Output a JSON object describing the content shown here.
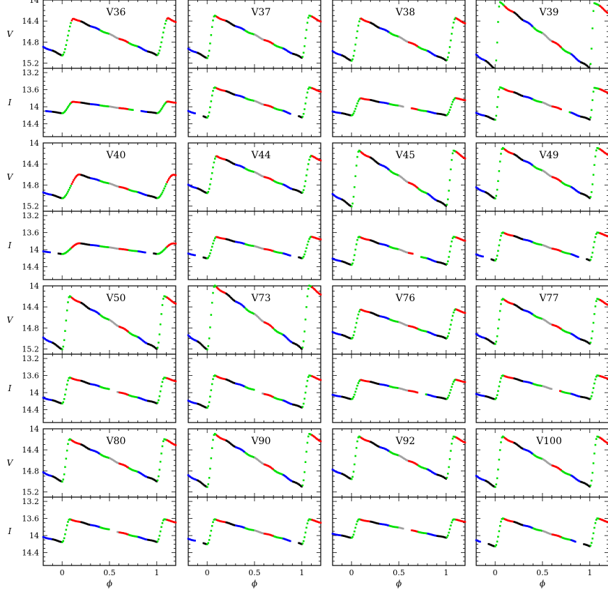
{
  "chart_data": {
    "type": "scatter",
    "description_title": "",
    "x_label": "ϕ",
    "x_range": [
      -0.2,
      1.2
    ],
    "x_ticks": [
      "0",
      "0.5",
      "1"
    ],
    "x_tick_values": [
      0,
      0.5,
      1
    ],
    "v_label": "V",
    "i_label": "I",
    "v_range": [
      14.0,
      15.3
    ],
    "v_ticks": [
      "14",
      "14.4",
      "14.8",
      "15.2"
    ],
    "v_tick_values": [
      14.0,
      14.4,
      14.8,
      15.2
    ],
    "i_range": [
      13.1,
      14.7
    ],
    "i_ticks": [
      "13.2",
      "13.6",
      "14",
      "14.4"
    ],
    "i_tick_values": [
      13.2,
      13.6,
      14.0,
      14.4
    ],
    "colors": {
      "green": "#00e000",
      "red": "#ff0000",
      "blue": "#0000ff",
      "black": "#000000",
      "gray": "#a0a0a0"
    },
    "stars": [
      {
        "name": "V36",
        "v_min": 14.35,
        "v_max": 15.05,
        "i_min": 13.88,
        "i_max": 14.15,
        "rise": 0.12,
        "vg": [
          0,
          0.85
        ],
        "ig": [
          0,
          0.75
        ]
      },
      {
        "name": "V37",
        "v_min": 14.3,
        "v_max": 15.1,
        "i_min": 13.55,
        "i_max": 14.25,
        "rise": 0.08,
        "vg": [
          0,
          0.88
        ],
        "ig": [
          0,
          0.88
        ]
      },
      {
        "name": "V38",
        "v_min": 14.35,
        "v_max": 15.15,
        "i_min": 13.8,
        "i_max": 14.2,
        "rise": 0.1,
        "vg": [
          0,
          0.88
        ],
        "ig": [
          0,
          0.55
        ]
      },
      {
        "name": "V39",
        "v_min": 14.05,
        "v_max": 15.3,
        "i_min": 13.55,
        "i_max": 14.3,
        "rise": 0.05,
        "vg": [
          0,
          0.85
        ],
        "ig": [
          0,
          0.7
        ]
      },
      {
        "name": "V40",
        "v_min": 14.6,
        "v_max": 15.05,
        "i_min": 13.85,
        "i_max": 14.1,
        "rise": 0.18,
        "vg": [
          0,
          0.88
        ],
        "ig": [
          0,
          0.88
        ]
      },
      {
        "name": "V44",
        "v_min": 14.25,
        "v_max": 14.95,
        "i_min": 13.7,
        "i_max": 14.2,
        "rise": 0.1,
        "vg": [
          0,
          0.88
        ],
        "ig": [
          0,
          0.88
        ]
      },
      {
        "name": "V45",
        "v_min": 14.15,
        "v_max": 15.2,
        "i_min": 13.7,
        "i_max": 14.35,
        "rise": 0.08,
        "vg": [
          0,
          0.88
        ],
        "ig": [
          0,
          0.65
        ]
      },
      {
        "name": "V49",
        "v_min": 14.1,
        "v_max": 15.05,
        "i_min": 13.6,
        "i_max": 14.25,
        "rise": 0.08,
        "vg": [
          0,
          0.88
        ],
        "ig": [
          0,
          0.88
        ]
      },
      {
        "name": "V50",
        "v_min": 14.2,
        "v_max": 15.2,
        "i_min": 13.65,
        "i_max": 14.25,
        "rise": 0.08,
        "vg": [
          0,
          0.88
        ],
        "ig": [
          0,
          0.5
        ]
      },
      {
        "name": "V73",
        "v_min": 14.0,
        "v_max": 15.2,
        "i_min": 13.6,
        "i_max": 14.35,
        "rise": 0.08,
        "vg": [
          0,
          0.88
        ],
        "ig": [
          0,
          0.5
        ]
      },
      {
        "name": "V76",
        "v_min": 14.45,
        "v_max": 15.0,
        "i_min": 13.7,
        "i_max": 14.15,
        "rise": 0.1,
        "vg": [
          0,
          0.88
        ],
        "ig": [
          0,
          0.7
        ]
      },
      {
        "name": "V77",
        "v_min": 14.25,
        "v_max": 15.1,
        "i_min": 13.6,
        "i_max": 14.15,
        "rise": 0.08,
        "vg": [
          0,
          0.88
        ],
        "ig": [
          0,
          0.6
        ]
      },
      {
        "name": "V80",
        "v_min": 14.2,
        "v_max": 15.0,
        "i_min": 13.62,
        "i_max": 14.15,
        "rise": 0.08,
        "vg": [
          0,
          0.88
        ],
        "ig": [
          0,
          0.5
        ]
      },
      {
        "name": "V90",
        "v_min": 14.1,
        "v_max": 15.1,
        "i_min": 13.62,
        "i_max": 14.2,
        "rise": 0.08,
        "vg": [
          0,
          0.88
        ],
        "ig": [
          0,
          0.88
        ]
      },
      {
        "name": "V92",
        "v_min": 14.15,
        "v_max": 14.95,
        "i_min": 13.62,
        "i_max": 14.05,
        "rise": 0.08,
        "vg": [
          0,
          0.5
        ],
        "ig": [
          0,
          0.55
        ]
      },
      {
        "name": "V100",
        "v_min": 14.15,
        "v_max": 15.1,
        "i_min": 13.6,
        "i_max": 14.25,
        "rise": 0.08,
        "vg": [
          0,
          0.85
        ],
        "ig": [
          0,
          0.85
        ]
      }
    ]
  }
}
